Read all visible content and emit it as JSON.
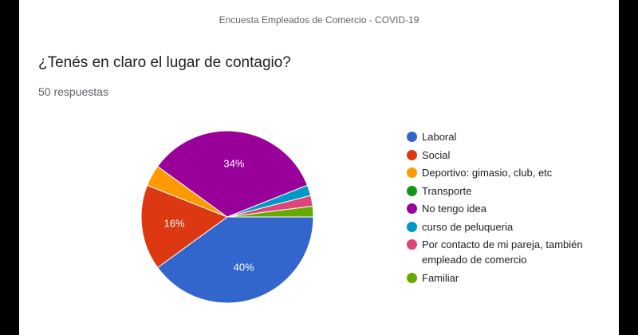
{
  "header": {
    "title": "Encuesta Empleados de Comercio - COVID-19"
  },
  "question": {
    "title": "¿Tenés en claro el lugar de contagio?",
    "count": "50 respuestas"
  },
  "chart_data": {
    "type": "pie",
    "title": "¿Tenés en claro el lugar de contagio?",
    "categories": [
      "Laboral",
      "Social",
      "Deportivo: gimasio, club, etc",
      "Transporte",
      "No tengo idea",
      "curso de peluqueria",
      "Por contacto de mi pareja, también empleado de comercio",
      "Familiar"
    ],
    "values": [
      40,
      16,
      4,
      0,
      34,
      2,
      2,
      2
    ],
    "slice_labels": [
      "40%",
      "16%",
      "",
      "",
      "34%",
      "",
      "",
      ""
    ],
    "colors": [
      "#3366cc",
      "#dc3912",
      "#ff9900",
      "#109618",
      "#990099",
      "#0099c6",
      "#dd4477",
      "#66aa00"
    ],
    "legend_position": "right"
  }
}
